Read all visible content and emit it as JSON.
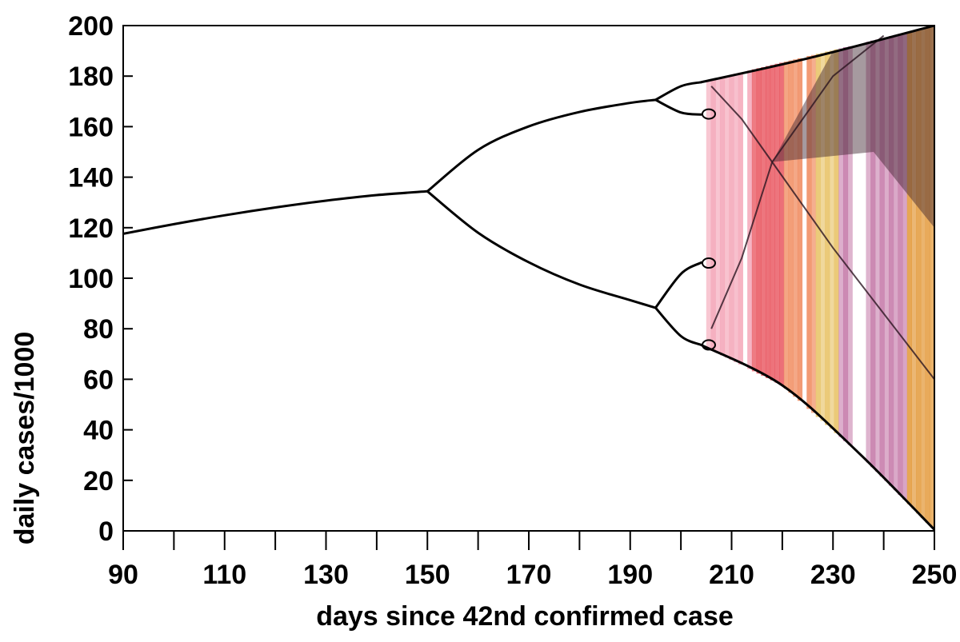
{
  "chart_data": {
    "type": "scatter",
    "title": "",
    "xlabel": "days since 42nd confirmed case",
    "ylabel": "daily cases/1000",
    "xlim": [
      90,
      250
    ],
    "ylim": [
      0,
      200
    ],
    "x_ticks": [
      90,
      110,
      130,
      150,
      170,
      190,
      210,
      230,
      250
    ],
    "y_ticks": [
      0,
      20,
      40,
      60,
      80,
      100,
      120,
      140,
      160,
      180,
      200
    ],
    "grid": false,
    "legend": "none",
    "colors": {
      "line": "#000000",
      "chaos_palette": [
        "#f4a6b8",
        "#e8505a",
        "#f08a5d",
        "#e8c468",
        "#c77dab",
        "#d9a0d8",
        "#e39a3b",
        "#3a1f2a"
      ]
    },
    "series": [
      {
        "points": [
          [
            90,
            117.6
          ],
          [
            100,
            121.4
          ],
          [
            110,
            124.9
          ],
          [
            120,
            128.0
          ],
          [
            130,
            130.7
          ],
          [
            140,
            132.9
          ],
          [
            150,
            134.4
          ]
        ]
      },
      {
        "points": [
          [
            150,
            134.4
          ],
          [
            160,
            150.8
          ],
          [
            170,
            160.1
          ],
          [
            180,
            165.8
          ],
          [
            190,
            169.4
          ],
          [
            195,
            170.6
          ]
        ]
      },
      {
        "points": [
          [
            150,
            134.4
          ],
          [
            160,
            118.0
          ],
          [
            170,
            106.3
          ],
          [
            180,
            97.5
          ],
          [
            190,
            91.3
          ],
          [
            195,
            88.3
          ]
        ]
      },
      {
        "points": [
          [
            195,
            170.6
          ],
          [
            200,
            176.0
          ],
          [
            204,
            177.6
          ]
        ]
      },
      {
        "points": [
          [
            195,
            170.6
          ],
          [
            200,
            165.6
          ],
          [
            204,
            164.8
          ]
        ]
      },
      {
        "points": [
          [
            195,
            88.3
          ],
          [
            200,
            101.7
          ],
          [
            204,
            106.2
          ]
        ]
      },
      {
        "points": [
          [
            195,
            88.3
          ],
          [
            200,
            77.1
          ],
          [
            204,
            73.6
          ]
        ]
      },
      {
        "points": [
          [
            204,
            177.6
          ],
          [
            225,
            187.0
          ],
          [
            250,
            200
          ]
        ]
      },
      {
        "points": [
          [
            204,
            73.6
          ],
          [
            220,
            57.6
          ],
          [
            235,
            31.0
          ],
          [
            250,
            0.5
          ]
        ]
      }
    ]
  }
}
